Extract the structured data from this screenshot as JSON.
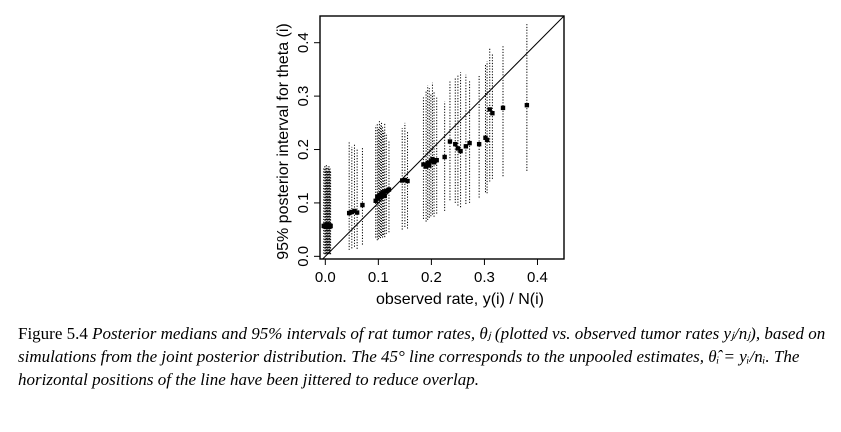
{
  "figure": {
    "label": "Figure 5.4",
    "caption": "Posterior medians and 95% intervals of rat tumor rates, θⱼ (plotted vs. observed tumor rates yⱼ/nⱼ), based on simulations from the joint posterior distribution. The 45° line corresponds to the unpooled estimates, θ̂ᵢ = yᵢ/nᵢ. The horizontal positions of the line have been jittered to reduce overlap."
  },
  "chart_data": {
    "type": "scatter",
    "xlabel": "observed rate, y(i) / N(i)",
    "ylabel": "95% posterior interval for theta (i)",
    "xlim": [
      -0.01,
      0.45
    ],
    "ylim": [
      -0.005,
      0.45
    ],
    "x_ticks": [
      "0.0",
      "0.1",
      "0.2",
      "0.3",
      "0.4"
    ],
    "y_ticks": [
      "0.0",
      "0.1",
      "0.2",
      "0.3",
      "0.4"
    ],
    "reference_line": "y = x",
    "grid": false,
    "points": [
      {
        "x": -0.003,
        "median": 0.057,
        "lo": 0.005,
        "hi": 0.165
      },
      {
        "x": -0.001,
        "median": 0.056,
        "lo": 0.004,
        "hi": 0.17
      },
      {
        "x": 0.0,
        "median": 0.058,
        "lo": 0.005,
        "hi": 0.168
      },
      {
        "x": 0.001,
        "median": 0.055,
        "lo": 0.004,
        "hi": 0.162
      },
      {
        "x": 0.002,
        "median": 0.057,
        "lo": 0.006,
        "hi": 0.172
      },
      {
        "x": 0.003,
        "median": 0.059,
        "lo": 0.005,
        "hi": 0.166
      },
      {
        "x": 0.004,
        "median": 0.056,
        "lo": 0.004,
        "hi": 0.16
      },
      {
        "x": 0.005,
        "median": 0.058,
        "lo": 0.006,
        "hi": 0.169
      },
      {
        "x": 0.006,
        "median": 0.057,
        "lo": 0.005,
        "hi": 0.164
      },
      {
        "x": 0.007,
        "median": 0.055,
        "lo": 0.004,
        "hi": 0.171
      },
      {
        "x": 0.008,
        "median": 0.058,
        "lo": 0.006,
        "hi": 0.163
      },
      {
        "x": 0.009,
        "median": 0.056,
        "lo": 0.005,
        "hi": 0.167
      },
      {
        "x": 0.01,
        "median": 0.057,
        "lo": 0.004,
        "hi": 0.161
      },
      {
        "x": 0.045,
        "median": 0.081,
        "lo": 0.012,
        "hi": 0.215
      },
      {
        "x": 0.05,
        "median": 0.083,
        "lo": 0.015,
        "hi": 0.205
      },
      {
        "x": 0.055,
        "median": 0.085,
        "lo": 0.018,
        "hi": 0.21
      },
      {
        "x": 0.06,
        "median": 0.082,
        "lo": 0.014,
        "hi": 0.2
      },
      {
        "x": 0.07,
        "median": 0.096,
        "lo": 0.022,
        "hi": 0.205
      },
      {
        "x": 0.095,
        "median": 0.104,
        "lo": 0.035,
        "hi": 0.245
      },
      {
        "x": 0.098,
        "median": 0.112,
        "lo": 0.03,
        "hi": 0.25
      },
      {
        "x": 0.1,
        "median": 0.108,
        "lo": 0.032,
        "hi": 0.24
      },
      {
        "x": 0.102,
        "median": 0.115,
        "lo": 0.036,
        "hi": 0.255
      },
      {
        "x": 0.104,
        "median": 0.112,
        "lo": 0.034,
        "hi": 0.245
      },
      {
        "x": 0.106,
        "median": 0.118,
        "lo": 0.038,
        "hi": 0.25
      },
      {
        "x": 0.108,
        "median": 0.115,
        "lo": 0.035,
        "hi": 0.242
      },
      {
        "x": 0.11,
        "median": 0.12,
        "lo": 0.04,
        "hi": 0.235
      },
      {
        "x": 0.112,
        "median": 0.113,
        "lo": 0.036,
        "hi": 0.248
      },
      {
        "x": 0.115,
        "median": 0.122,
        "lo": 0.042,
        "hi": 0.23
      },
      {
        "x": 0.12,
        "median": 0.125,
        "lo": 0.045,
        "hi": 0.215
      },
      {
        "x": 0.145,
        "median": 0.142,
        "lo": 0.05,
        "hi": 0.24
      },
      {
        "x": 0.15,
        "median": 0.143,
        "lo": 0.055,
        "hi": 0.25
      },
      {
        "x": 0.155,
        "median": 0.141,
        "lo": 0.052,
        "hi": 0.235
      },
      {
        "x": 0.185,
        "median": 0.172,
        "lo": 0.07,
        "hi": 0.3
      },
      {
        "x": 0.19,
        "median": 0.168,
        "lo": 0.065,
        "hi": 0.31
      },
      {
        "x": 0.193,
        "median": 0.175,
        "lo": 0.068,
        "hi": 0.32
      },
      {
        "x": 0.196,
        "median": 0.17,
        "lo": 0.072,
        "hi": 0.315
      },
      {
        "x": 0.199,
        "median": 0.178,
        "lo": 0.075,
        "hi": 0.305
      },
      {
        "x": 0.202,
        "median": 0.182,
        "lo": 0.078,
        "hi": 0.325
      },
      {
        "x": 0.205,
        "median": 0.176,
        "lo": 0.074,
        "hi": 0.31
      },
      {
        "x": 0.21,
        "median": 0.18,
        "lo": 0.08,
        "hi": 0.3
      },
      {
        "x": 0.225,
        "median": 0.186,
        "lo": 0.085,
        "hi": 0.29
      },
      {
        "x": 0.235,
        "median": 0.215,
        "lo": 0.105,
        "hi": 0.33
      },
      {
        "x": 0.245,
        "median": 0.21,
        "lo": 0.1,
        "hi": 0.335
      },
      {
        "x": 0.25,
        "median": 0.202,
        "lo": 0.095,
        "hi": 0.34
      },
      {
        "x": 0.255,
        "median": 0.197,
        "lo": 0.092,
        "hi": 0.345
      },
      {
        "x": 0.265,
        "median": 0.206,
        "lo": 0.098,
        "hi": 0.34
      },
      {
        "x": 0.272,
        "median": 0.212,
        "lo": 0.1,
        "hi": 0.33
      },
      {
        "x": 0.29,
        "median": 0.21,
        "lo": 0.11,
        "hi": 0.34
      },
      {
        "x": 0.302,
        "median": 0.222,
        "lo": 0.12,
        "hi": 0.36
      },
      {
        "x": 0.305,
        "median": 0.218,
        "lo": 0.118,
        "hi": 0.365
      },
      {
        "x": 0.31,
        "median": 0.275,
        "lo": 0.14,
        "hi": 0.39
      },
      {
        "x": 0.315,
        "median": 0.268,
        "lo": 0.145,
        "hi": 0.38
      },
      {
        "x": 0.335,
        "median": 0.278,
        "lo": 0.15,
        "hi": 0.395
      },
      {
        "x": 0.38,
        "median": 0.283,
        "lo": 0.16,
        "hi": 0.435
      }
    ]
  }
}
